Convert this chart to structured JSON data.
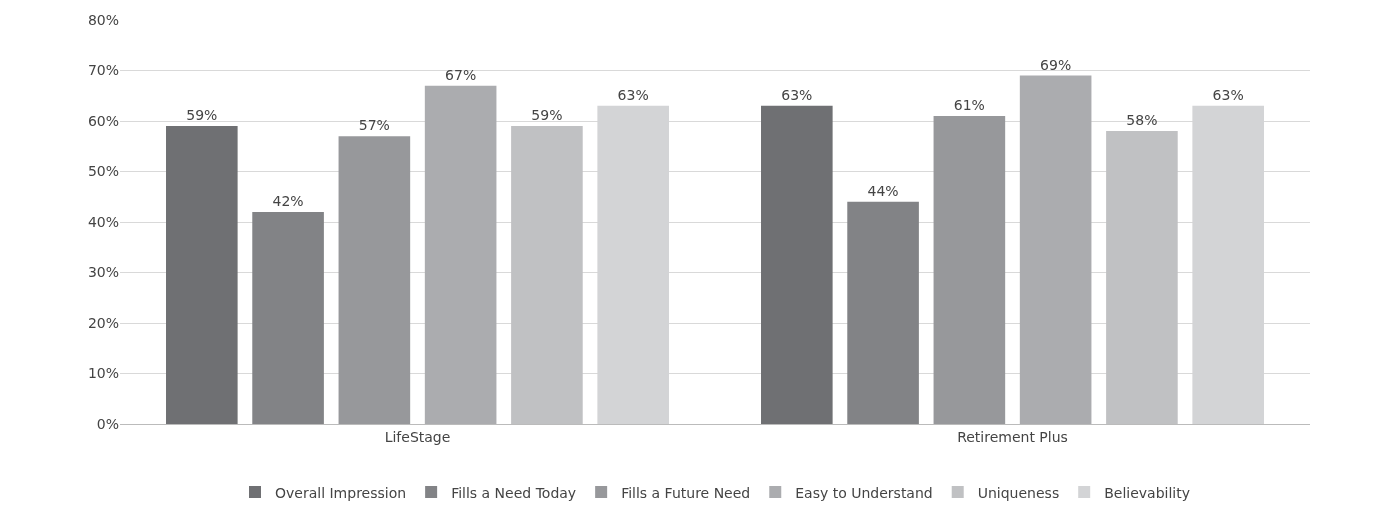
{
  "chart_data": {
    "type": "bar",
    "categories": [
      "LifeStage",
      "Retirement Plus"
    ],
    "series": [
      {
        "name": "Overall Impression",
        "color": "#6f7073",
        "values": [
          59,
          63
        ],
        "value_labels": [
          "59%",
          "63%"
        ]
      },
      {
        "name": "Fills a Need Today",
        "color": "#828386",
        "values": [
          42,
          44
        ],
        "value_labels": [
          "42%",
          "44%"
        ]
      },
      {
        "name": "Fills a Future Need",
        "color": "#97989b",
        "values": [
          57,
          61
        ],
        "value_labels": [
          "57%",
          "61%"
        ]
      },
      {
        "name": "Easy to Understand",
        "color": "#abacaf",
        "values": [
          67,
          69
        ],
        "value_labels": [
          "67%",
          "69%"
        ]
      },
      {
        "name": "Uniqueness",
        "color": "#c0c1c3",
        "values": [
          59,
          58
        ],
        "value_labels": [
          "59%",
          "58%"
        ]
      },
      {
        "name": "Believability",
        "color": "#d3d4d6",
        "values": [
          63,
          63
        ],
        "value_labels": [
          "63%",
          "63%"
        ]
      }
    ],
    "ylim": [
      0,
      80
    ],
    "yticks": [
      {
        "value": 0,
        "label": "0%"
      },
      {
        "value": 10,
        "label": "10%"
      },
      {
        "value": 20,
        "label": "20%"
      },
      {
        "value": 30,
        "label": "30%"
      },
      {
        "value": 40,
        "label": "40%"
      },
      {
        "value": 50,
        "label": "50%"
      },
      {
        "value": 60,
        "label": "60%"
      },
      {
        "value": 70,
        "label": "70%"
      },
      {
        "value": 80,
        "label": "80%"
      }
    ],
    "grid": "y",
    "legend": "bottom"
  }
}
